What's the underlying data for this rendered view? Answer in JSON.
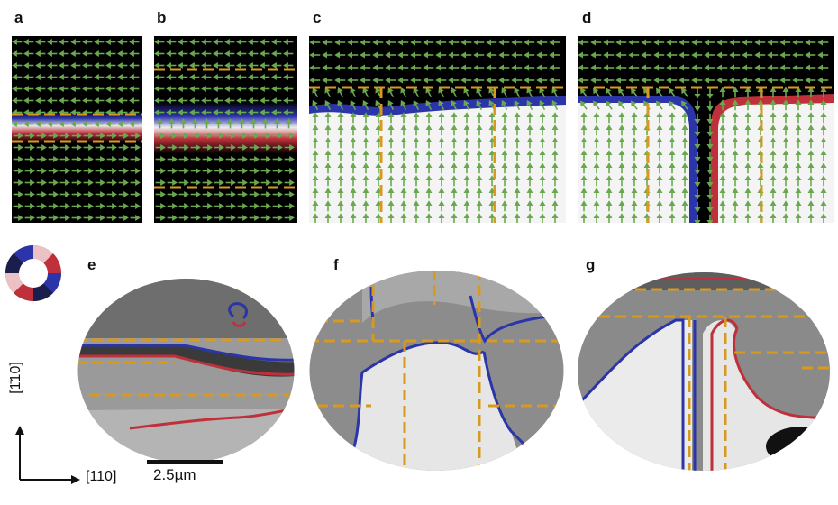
{
  "panels": {
    "a": "a",
    "b": "b",
    "c": "c",
    "d": "d",
    "e": "e",
    "f": "f",
    "g": "g"
  },
  "axes": {
    "vertical_label": "[1̄10]",
    "horizontal_label": "[110]"
  },
  "scale_bar": {
    "label": "2.5µm"
  },
  "colors": {
    "arrow": "#6aa84f",
    "dash": "#d89a1e",
    "blue": "#2b34a8",
    "red": "#c0303a"
  }
}
